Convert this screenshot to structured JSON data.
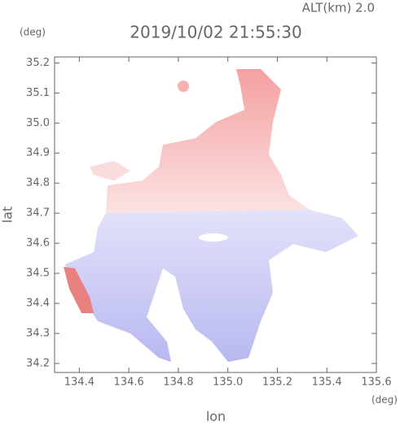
{
  "chart_data": {
    "type": "map",
    "title": "2019/10/02 21:55:30",
    "subtitle": "ALT(km) 2.0",
    "xlabel": "lon",
    "ylabel": "lat",
    "xunit": "(deg)",
    "yunit": "(deg)",
    "xlim": [
      134.3,
      135.6
    ],
    "ylim": [
      34.17,
      35.22
    ],
    "xticks": [
      134.4,
      134.6,
      134.8,
      {
        "value": 135,
        "label": "135.0"
      },
      135.2,
      135.4,
      135.6
    ],
    "yticks": [
      34.2,
      34.3,
      34.4,
      34.5,
      34.6,
      34.7,
      34.8,
      34.9,
      {
        "value": 35,
        "label": "35.0"
      },
      35.1,
      35.2
    ]
  }
}
